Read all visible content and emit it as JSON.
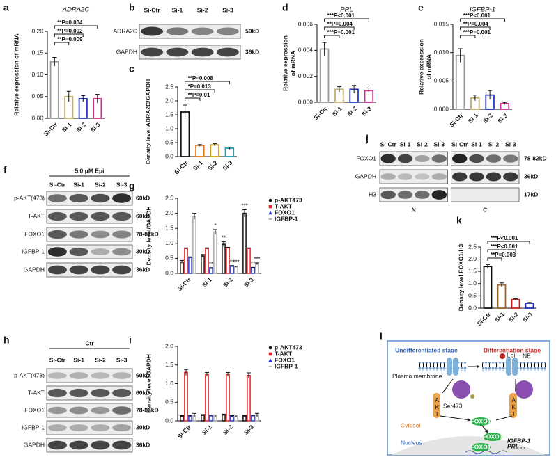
{
  "chart_data": [
    {
      "type": "bar",
      "panel": "a",
      "title": "ADRA2C",
      "ylabel": "Relative expression of mRNA",
      "categories": [
        "Si-Ctr",
        "Si-1",
        "Si-2",
        "Si-3"
      ],
      "values": [
        0.13,
        0.05,
        0.045,
        0.045
      ],
      "errors": [
        0.01,
        0.012,
        0.007,
        0.01
      ],
      "colors": [
        "#9a9a9a",
        "#c2b070",
        "#2636c0",
        "#cf2f8c"
      ],
      "ylim": [
        0,
        0.2
      ],
      "yticks": [
        {
          "value": 0,
          "label": "0.00"
        },
        {
          "value": 0.05,
          "label": "0.05"
        },
        {
          "value": 0.1,
          "label": "0.10"
        },
        {
          "value": 0.15,
          "label": "0.15"
        },
        {
          "value": 0.2,
          "label": "0.20"
        }
      ],
      "annotations": [
        "**P=0.004",
        "**P=0.002",
        "**P=0.009"
      ]
    },
    {
      "type": "bar",
      "panel": "c",
      "ylabel": "Density level ADRA2C/GAPDH",
      "categories": [
        "Si-Ctr",
        "Si-1",
        "Si-2",
        "Si-3"
      ],
      "values": [
        1.6,
        0.4,
        0.42,
        0.3
      ],
      "errors": [
        0.25,
        0.03,
        0.04,
        0.04
      ],
      "colors": [
        "#111111",
        "#e07b20",
        "#c8a020",
        "#2a9ab0"
      ],
      "ylim": [
        0,
        2.5
      ],
      "yticks": [
        {
          "value": 0,
          "label": "0.0"
        },
        {
          "value": 0.5,
          "label": "0.5"
        },
        {
          "value": 1,
          "label": "1.0"
        },
        {
          "value": 1.5,
          "label": "1.5"
        },
        {
          "value": 2,
          "label": "2.0"
        },
        {
          "value": 2.5,
          "label": "2.5"
        }
      ],
      "annotations": [
        "**P=0.008",
        "*P=0.013",
        "**P=0.01"
      ]
    },
    {
      "type": "bar",
      "panel": "d",
      "title": "PRL",
      "ylabel": [
        "Relative expression",
        "of mRNA"
      ],
      "categories": [
        "Si-Ctr",
        "Si-1",
        "Si-2",
        "Si-3"
      ],
      "values": [
        0.0041,
        0.001,
        0.001,
        0.0009
      ],
      "errors": [
        0.0005,
        0.0002,
        0.0003,
        0.0002
      ],
      "colors": [
        "#9a9a9a",
        "#c2b070",
        "#2636c0",
        "#cf2f8c"
      ],
      "ylim": [
        0,
        0.006
      ],
      "yticks": [
        {
          "value": 0,
          "label": "0.000"
        },
        {
          "value": 0.002,
          "label": "0.002"
        },
        {
          "value": 0.004,
          "label": "0.004"
        },
        {
          "value": 0.006,
          "label": "0.006"
        }
      ],
      "annotations": [
        "***P<0.001",
        "**P=0.004",
        "***P=0.001"
      ]
    },
    {
      "type": "bar",
      "panel": "e",
      "title": "IGFBP-1",
      "ylabel": [
        "Relative expression",
        "of mRNA"
      ],
      "categories": [
        "Si-Ctr",
        "Si-1",
        "Si-2",
        "Si-3"
      ],
      "values": [
        0.0095,
        0.002,
        0.0025,
        0.001
      ],
      "errors": [
        0.0012,
        0.0005,
        0.0008,
        0.0002
      ],
      "colors": [
        "#9a9a9a",
        "#c2b070",
        "#2636c0",
        "#cf2f8c"
      ],
      "ylim": [
        0,
        0.015
      ],
      "yticks": [
        {
          "value": 0,
          "label": "0.000"
        },
        {
          "value": 0.005,
          "label": "0.005"
        },
        {
          "value": 0.01,
          "label": "0.010"
        },
        {
          "value": 0.015,
          "label": "0.015"
        }
      ],
      "annotations": [
        "***P<0.001",
        "**P=0.004",
        "***P=0.001"
      ]
    },
    {
      "type": "grouped_bar",
      "panel": "g",
      "ylabel": "Density level/GAPDH",
      "categories": [
        "Si-Ctr",
        "Si-1",
        "Si-2",
        "Si-3"
      ],
      "ylim": [
        0,
        2.5
      ],
      "yticks": [
        {
          "value": 0,
          "label": "0.0"
        },
        {
          "value": 0.5,
          "label": "0.5"
        },
        {
          "value": 1,
          "label": "1.0"
        },
        {
          "value": 1.5,
          "label": "1.5"
        },
        {
          "value": 2,
          "label": "2.0"
        },
        {
          "value": 2.5,
          "label": "2.5"
        }
      ],
      "series": [
        {
          "name": "p-AKT473",
          "color": "#111111",
          "values": [
            0.38,
            0.58,
            0.97,
            2.0
          ],
          "errors": [
            0.05,
            0.05,
            0.08,
            0.12
          ],
          "significance": [
            null,
            null,
            "**",
            "***"
          ]
        },
        {
          "name": "T-AKT",
          "color": "#e8232a",
          "values": [
            0.83,
            0.83,
            0.85,
            0.83
          ],
          "errors": [
            0.02,
            0.02,
            0.02,
            0.02
          ]
        },
        {
          "name": "FOXO1",
          "color": "#2233cc",
          "values": [
            0.53,
            0.17,
            0.24,
            0.18
          ],
          "errors": [
            0.02,
            0.02,
            0.02,
            0.02
          ],
          "significance": [
            null,
            "**",
            "**",
            "**"
          ]
        },
        {
          "name": "IGFBP-1",
          "color": "#aaaaaa",
          "values": [
            1.9,
            1.38,
            0.22,
            0.32
          ],
          "errors": [
            0.1,
            0.08,
            0.02,
            0.03
          ],
          "significance": [
            null,
            "*",
            "***",
            "***"
          ]
        }
      ]
    },
    {
      "type": "grouped_bar",
      "panel": "i",
      "ylabel": "Density level/GAPDH",
      "categories": [
        "Si-Ctr",
        "Si-1",
        "Si-2",
        "Si-3"
      ],
      "ylim": [
        0,
        2
      ],
      "yticks": [
        {
          "value": 0,
          "label": "0.0"
        },
        {
          "value": 0.5,
          "label": "0.5"
        },
        {
          "value": 1,
          "label": "1.0"
        },
        {
          "value": 1.5,
          "label": "1.5"
        },
        {
          "value": 2,
          "label": "2.0"
        }
      ],
      "series": [
        {
          "name": "p-AKT473",
          "color": "#111111",
          "values": [
            0.12,
            0.15,
            0.16,
            0.13
          ],
          "errors": [
            0.02,
            0.02,
            0.02,
            0.02
          ]
        },
        {
          "name": "T-AKT",
          "color": "#e8232a",
          "values": [
            1.3,
            1.25,
            1.25,
            1.22
          ],
          "errors": [
            0.08,
            0.05,
            0.05,
            0.07
          ]
        },
        {
          "name": "FOXO1",
          "color": "#2233cc",
          "values": [
            0.13,
            0.14,
            0.12,
            0.14
          ],
          "errors": [
            0.02,
            0.02,
            0.02,
            0.02
          ]
        },
        {
          "name": "IGFBP-1",
          "color": "#aaaaaa",
          "values": [
            0.15,
            0.13,
            0.13,
            0.15
          ],
          "errors": [
            0.05,
            0.03,
            0.03,
            0.05
          ]
        }
      ]
    },
    {
      "type": "bar",
      "panel": "k",
      "ylabel": "Density level FOXO1/H3",
      "categories": [
        "Si-Ctr",
        "Si-1",
        "Si-2",
        "Si-3"
      ],
      "values": [
        1.7,
        0.95,
        0.35,
        0.2
      ],
      "errors": [
        0.08,
        0.08,
        0.03,
        0.03
      ],
      "colors": [
        "#111111",
        "#a0651e",
        "#d02020",
        "#2030c0"
      ],
      "ylim": [
        0,
        2.5
      ],
      "yticks": [
        {
          "value": 0,
          "label": "0.0"
        },
        {
          "value": 0.5,
          "label": "0.5"
        },
        {
          "value": 1,
          "label": "1.0"
        },
        {
          "value": 1.5,
          "label": "1.5"
        },
        {
          "value": 2,
          "label": "2.0"
        },
        {
          "value": 2.5,
          "label": "2.5"
        }
      ],
      "annotations": [
        "***P<0.001",
        "***P<0.001",
        "**P=0.003"
      ]
    }
  ],
  "blots": [
    {
      "panel": "b",
      "lanes": [
        "Si-Ctr",
        "Si-1",
        "Si-2",
        "Si-3"
      ],
      "rows": [
        "ADRA2C",
        "GAPDH"
      ],
      "sizes": [
        "50kD",
        "36kD"
      ]
    },
    {
      "panel": "f",
      "header": "5.0 μM Epi",
      "lanes": [
        "Si-Ctr",
        "Si-1",
        "Si-2",
        "Si-3"
      ],
      "rows": [
        "p-AKT(473)",
        "T-AKT",
        "FOXO1",
        "IGFBP-1",
        "GAPDH"
      ],
      "sizes": [
        "60kD",
        "60kD",
        "78-82kD",
        "30kD",
        "36kD"
      ]
    },
    {
      "panel": "h",
      "header": "Ctr",
      "lanes": [
        "Si-Ctr",
        "Si-1",
        "Si-2",
        "Si-3"
      ],
      "rows": [
        "p-AKT(473)",
        "T-AKT",
        "FOXO1",
        "IGFBP-1",
        "GAPDH"
      ],
      "sizes": [
        "60kD",
        "60kD",
        "78-82kD",
        "30kD",
        "36kD"
      ]
    },
    {
      "panel": "j",
      "lanes": [
        "Si-Ctr",
        "Si-1",
        "Si-2",
        "Si-3",
        "Si-Ctr",
        "Si-1",
        "Si-2",
        "Si-3"
      ],
      "rows": [
        "FOXO1",
        "GAPDH",
        "H3"
      ],
      "sizes": [
        "78-82kD",
        "36kD",
        "17kD"
      ],
      "groups": [
        "N",
        "C"
      ]
    }
  ],
  "diagram": {
    "panel": "l",
    "left_title": "Undifferentiated stage",
    "right_title": "Differentiation stage",
    "membrane": "Plasma membrane",
    "epi": "Epi",
    "ne": "NE",
    "akt": "AKT",
    "ser": "Ser473",
    "foxo1": "FOXO1",
    "cytosol": "Cytosol",
    "nucleus": "Nucleus",
    "genes": [
      "IGFBP-1",
      "PRL ..."
    ]
  }
}
